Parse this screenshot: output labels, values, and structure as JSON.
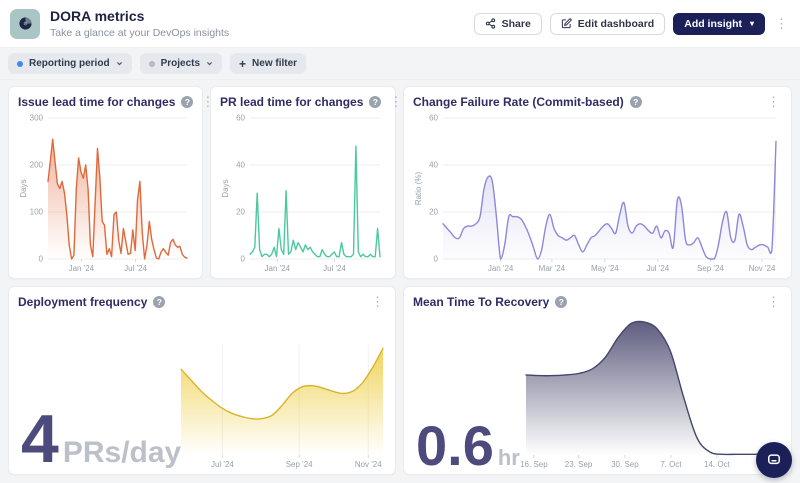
{
  "header": {
    "title": "DORA metrics",
    "subtitle": "Take a glance at your DevOps insights",
    "buttons": {
      "share": "Share",
      "edit": "Edit dashboard",
      "add_insight": "Add insight"
    }
  },
  "filter_bar": {
    "filters": [
      {
        "label": "Reporting period",
        "dot_color": "#4285f4"
      },
      {
        "label": "Projects",
        "dot_color": "#b3b9c2"
      }
    ],
    "new_filter_label": "New filter"
  },
  "icons": {
    "help": "?",
    "kebab": "⋮",
    "caret": "▾",
    "plus": "+"
  },
  "colors": {
    "accent_navy": "#1b2059",
    "card_title": "#2f2c63",
    "big_number": "#4d4a7d",
    "orange": "#e0693c",
    "teal": "#4cc8a0",
    "purple": "#8d88d9",
    "yellow": "#d9b42a",
    "slate": "#45446a"
  },
  "chart_data": [
    {
      "type": "area",
      "title": "Issue lead time for changes",
      "ylabel": "Days",
      "ylim": [
        0,
        300
      ],
      "yticks": [
        0,
        100,
        200,
        300
      ],
      "x_ticks": [
        {
          "label": "Jan '24",
          "pos": 0.24
        },
        {
          "label": "Jul '24",
          "pos": 0.63
        }
      ],
      "grid": true,
      "legend": "none",
      "smooth": false,
      "line_color": "#e0693c",
      "fill_color": "#e0693c",
      "fill_top": 0.5,
      "fill_bottom": 0,
      "values": [
        165,
        210,
        255,
        205,
        160,
        150,
        165,
        140,
        95,
        30,
        0,
        8,
        150,
        215,
        185,
        172,
        200,
        148,
        30,
        5,
        120,
        235,
        175,
        80,
        72,
        10,
        22,
        5,
        95,
        100,
        40,
        12,
        65,
        38,
        10,
        12,
        62,
        18,
        125,
        165,
        58,
        0,
        28,
        80,
        42,
        20,
        2,
        0,
        15,
        22,
        14,
        8,
        35,
        42,
        30,
        25,
        27,
        10,
        4,
        2
      ]
    },
    {
      "type": "line",
      "title": "PR lead time for changes",
      "ylabel": "Days",
      "ylim": [
        0,
        60
      ],
      "yticks": [
        0,
        20,
        40,
        60
      ],
      "x_ticks": [
        {
          "label": "Jan '24",
          "pos": 0.21
        },
        {
          "label": "Jul '24",
          "pos": 0.65
        }
      ],
      "grid": true,
      "legend": "none",
      "smooth": false,
      "line_color": "#4cc8a0",
      "fill_color": "#4cc8a0",
      "fill_top": 0.07,
      "fill_bottom": 0,
      "values": [
        2,
        3,
        5,
        28,
        4,
        1,
        2,
        2,
        1,
        2,
        5,
        1,
        13,
        4,
        2,
        29,
        2,
        3,
        8,
        4,
        7,
        5,
        3,
        6,
        4,
        5,
        3,
        2,
        1,
        1,
        4,
        2,
        1,
        1,
        2,
        3,
        1,
        1,
        7,
        2,
        1,
        1,
        1,
        2,
        48,
        3,
        1,
        2,
        1,
        1,
        2,
        1,
        1,
        13,
        1
      ]
    },
    {
      "type": "area",
      "title": "Change Failure Rate (Commit-based)",
      "ylabel": "Ratio (%)",
      "ylim": [
        0,
        60
      ],
      "yticks": [
        0,
        20,
        40,
        60
      ],
      "x_ticks": [
        {
          "label": "Jan '24",
          "pos": 0.173
        },
        {
          "label": "Mar '24",
          "pos": 0.327
        },
        {
          "label": "May '24",
          "pos": 0.486
        },
        {
          "label": "Jul '24",
          "pos": 0.645
        },
        {
          "label": "Sep '24",
          "pos": 0.803
        },
        {
          "label": "Nov '24",
          "pos": 0.958
        }
      ],
      "grid": true,
      "legend": "none",
      "smooth": true,
      "line_color": "#8d88d9",
      "fill_color": "#8d88d9",
      "fill_top": 0.32,
      "fill_bottom": 0.02,
      "values": [
        15,
        13,
        11,
        9,
        9,
        13,
        14,
        14,
        15,
        18,
        30,
        35,
        33,
        18,
        0,
        6,
        18,
        18,
        18,
        17,
        14,
        10,
        5,
        0,
        4,
        14,
        19,
        13,
        10,
        9,
        8,
        9,
        10,
        6,
        3,
        6,
        9,
        10,
        12,
        14,
        15,
        13,
        11,
        19,
        24,
        14,
        11,
        14,
        15,
        14,
        12,
        11,
        14,
        9,
        12,
        11,
        5,
        25,
        23,
        8,
        6,
        7,
        9,
        5,
        1,
        0,
        0,
        6,
        16,
        20,
        9,
        8,
        19,
        14,
        6,
        4,
        5,
        6,
        6,
        5,
        4,
        50
      ]
    },
    {
      "type": "area",
      "title": "Deployment frequency",
      "big_value": "4",
      "big_unit": "PRs/day",
      "ylabel": "",
      "ylim": [
        0,
        1
      ],
      "yticks": [],
      "x_ticks": [
        {
          "label": "Jul '24",
          "pos": 0.205
        },
        {
          "label": "Sep '24",
          "pos": 0.585
        },
        {
          "label": "Nov '24",
          "pos": 0.927
        }
      ],
      "grid": false,
      "x_grid": true,
      "legend": "none",
      "smooth": true,
      "line_color": "#d9b42a",
      "fill_color": "#eecd42",
      "fill_top": 0.85,
      "fill_bottom": 0,
      "values": [
        0.78,
        0.68,
        0.58,
        0.5,
        0.43,
        0.38,
        0.35,
        0.33,
        0.33,
        0.36,
        0.45,
        0.56,
        0.62,
        0.63,
        0.61,
        0.58,
        0.56,
        0.58,
        0.66,
        0.8,
        0.97
      ]
    },
    {
      "type": "area",
      "title": "Mean Time To Recovery",
      "big_value": "0.6",
      "big_unit": "hr",
      "ylabel": "",
      "ylim": [
        0,
        1
      ],
      "yticks": [],
      "x_ticks": [
        {
          "label": "16. Sep",
          "pos": 0.03
        },
        {
          "label": "23. Sep",
          "pos": 0.2
        },
        {
          "label": "30. Sep",
          "pos": 0.376
        },
        {
          "label": "7. Oct",
          "pos": 0.551
        },
        {
          "label": "14. Oct",
          "pos": 0.726
        }
      ],
      "grid": false,
      "legend": "none",
      "smooth": true,
      "line_color": "#45446a",
      "fill_color": "#504f74",
      "fill_top": 0.92,
      "fill_bottom": 0,
      "values": [
        0.56,
        0.555,
        0.555,
        0.56,
        0.57,
        0.6,
        0.68,
        0.82,
        0.92,
        0.93,
        0.88,
        0.72,
        0.4,
        0.12,
        0.02,
        0.005,
        0.005,
        0.005,
        0.005,
        0.005,
        0.005
      ]
    }
  ]
}
